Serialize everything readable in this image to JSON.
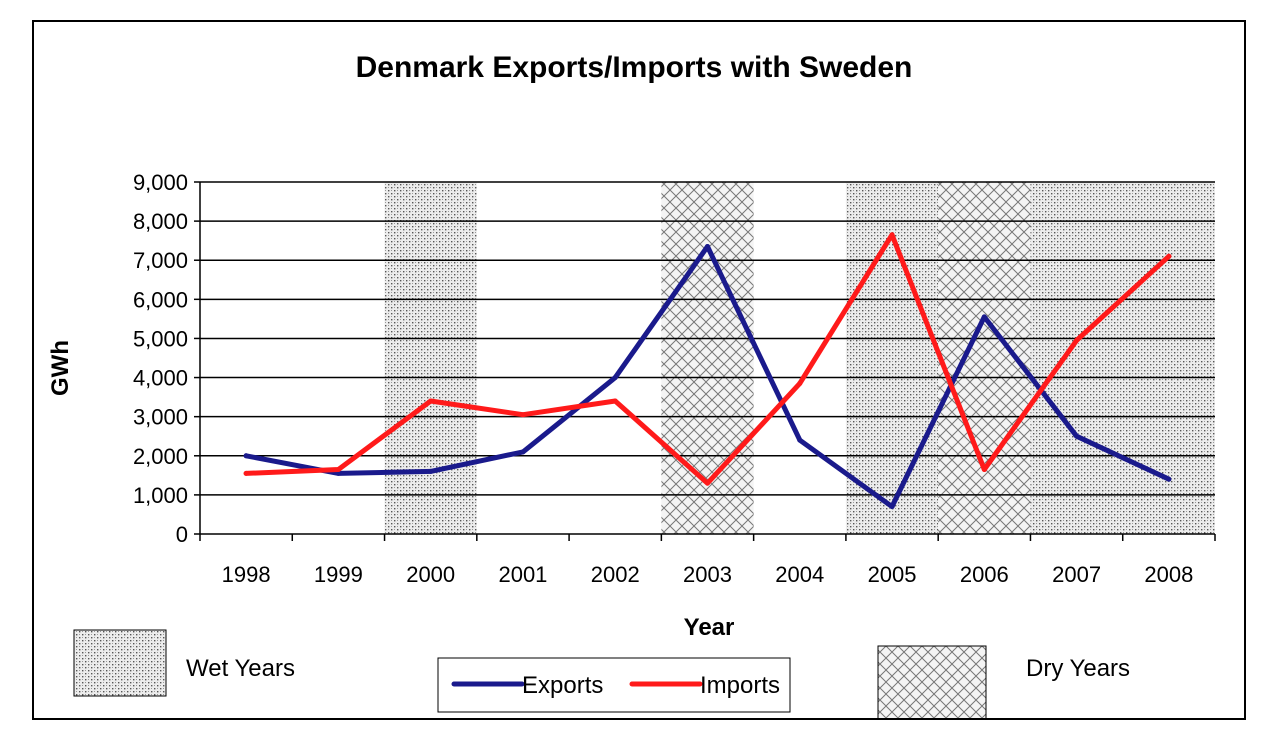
{
  "chart_data": {
    "type": "line",
    "title": "Denmark Exports/Imports with Sweden",
    "xlabel": "Year",
    "ylabel": "GWh",
    "categories": [
      "1998",
      "1999",
      "2000",
      "2001",
      "2002",
      "2003",
      "2004",
      "2005",
      "2006",
      "2007",
      "2008"
    ],
    "ylim": [
      0,
      9000
    ],
    "yticks": [
      0,
      1000,
      2000,
      3000,
      4000,
      5000,
      6000,
      7000,
      8000,
      9000
    ],
    "ytick_labels": [
      "0",
      "1,000",
      "2,000",
      "3,000",
      "4,000",
      "5,000",
      "6,000",
      "7,000",
      "8,000",
      "9,000"
    ],
    "grid": true,
    "series": [
      {
        "name": "Exports",
        "color": "#1a1a8c",
        "values": [
          2000,
          1550,
          1600,
          2100,
          4000,
          7350,
          2400,
          700,
          5550,
          2500,
          1400
        ]
      },
      {
        "name": "Imports",
        "color": "#ff1a1a",
        "values": [
          1550,
          1650,
          3400,
          3050,
          3400,
          1300,
          3850,
          7650,
          1650,
          4950,
          7100
        ]
      }
    ],
    "shaded_regions": [
      {
        "category": "2000",
        "pattern": "wet"
      },
      {
        "category": "2003",
        "pattern": "dry"
      },
      {
        "category": "2005",
        "pattern": "wet"
      },
      {
        "category": "2006",
        "pattern": "dry"
      },
      {
        "category": "2007",
        "pattern": "wet"
      },
      {
        "category": "2008",
        "pattern": "wet"
      }
    ],
    "pattern_legend": [
      {
        "key": "wet",
        "label": "Wet Years"
      },
      {
        "key": "dry",
        "label": "Dry Years"
      }
    ]
  }
}
